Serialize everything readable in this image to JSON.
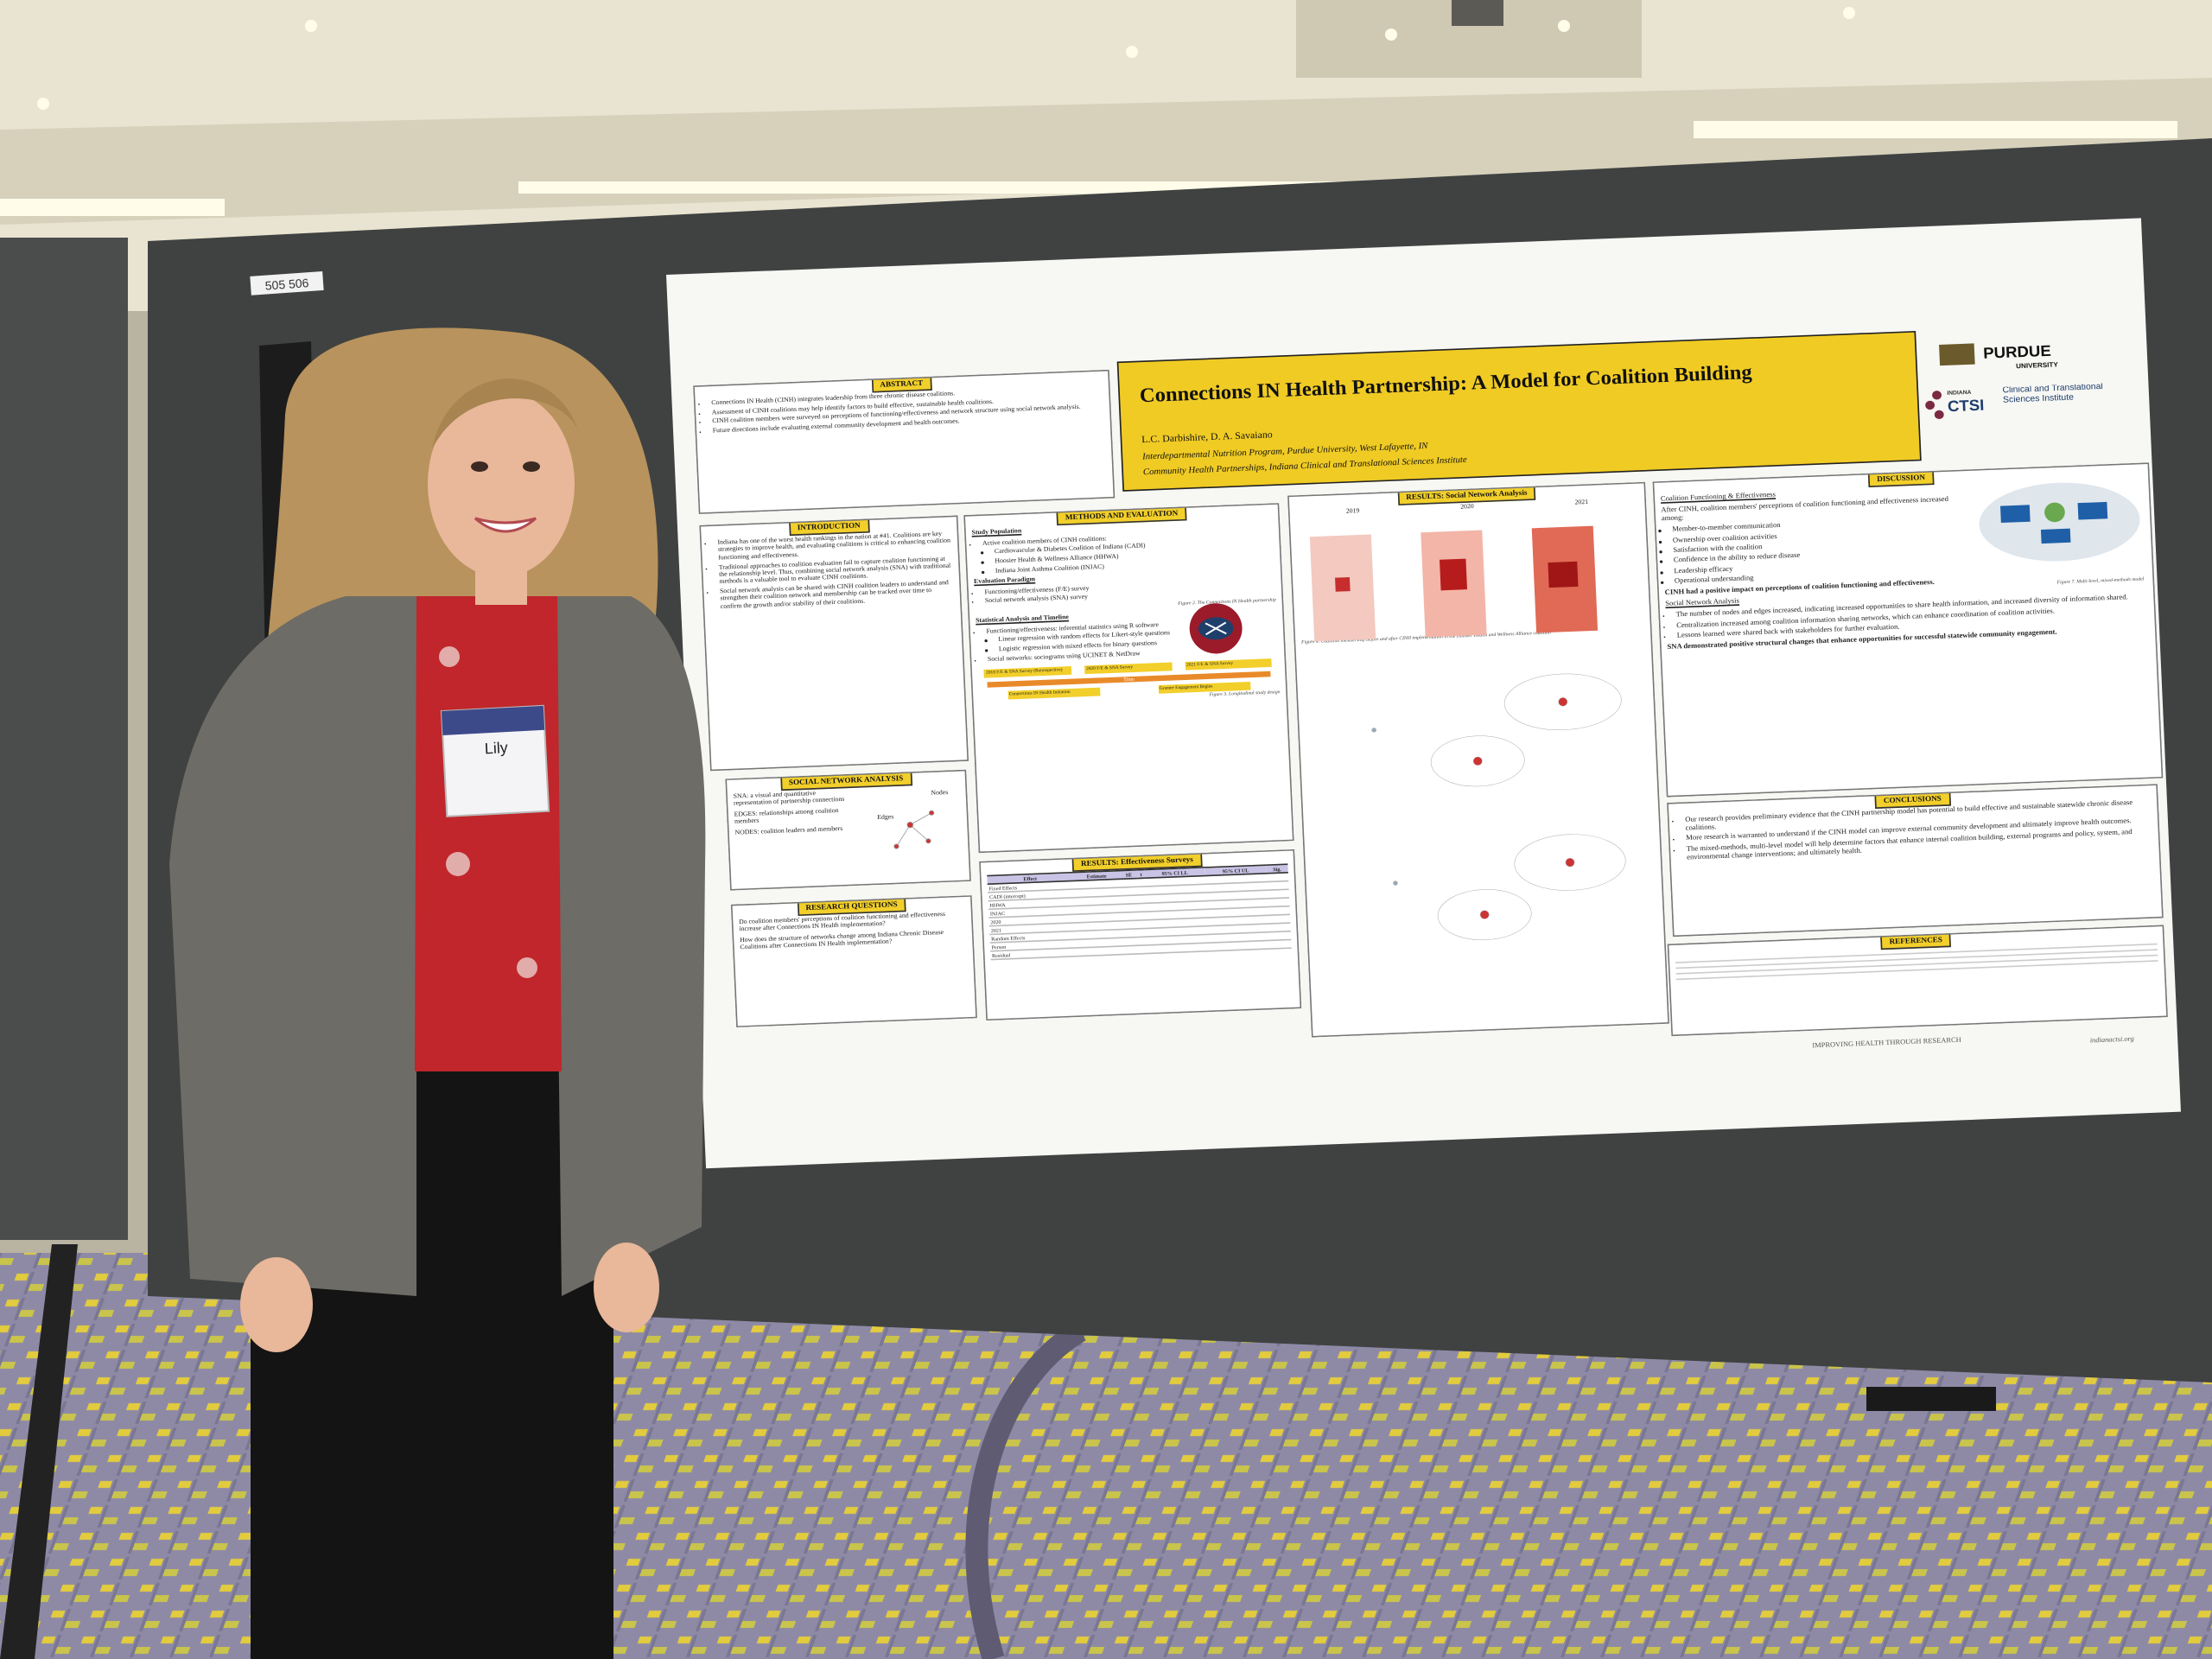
{
  "booth_number": "505 506",
  "badge": {
    "name": "Lily"
  },
  "poster": {
    "title": "Connections IN Health Partnership: A Model for Coalition Building",
    "authors": "L.C. Darbishire, D. A. Savaiano",
    "affiliations": [
      "Interdepartmental Nutrition Program, Purdue University, West Lafayette, IN",
      "Community Health Partnerships, Indiana Clinical and Translational Sciences Institute"
    ],
    "logos": {
      "purdue": "PURDUE",
      "purdue_sub": "UNIVERSITY",
      "ctsi_state": "INDIANA",
      "ctsi": "CTSI",
      "ctsi_name": "Clinical and Translational Sciences Institute"
    },
    "abstract": {
      "heading": "ABSTRACT",
      "items": [
        "Connections IN Health (CINH) integrates leadership from three chronic disease coalitions.",
        "Assessment of CINH coalitions may help identify factors to build effective, sustainable health coalitions.",
        "CINH coalition members were surveyed on perceptions of functioning/effectiveness and network structure using social network analysis.",
        "Future directions include evaluating external community development and health outcomes."
      ]
    },
    "introduction": {
      "heading": "INTRODUCTION",
      "items": [
        "Indiana has one of the worst health rankings in the nation at #41. Coalitions are key strategies to improve health, and evaluating coalitions is critical to enhancing coalition functioning and effectiveness.",
        "Traditional approaches to coalition evaluation fail to capture coalition functioning at the relationship level. Thus, combining social network analysis (SNA) with traditional methods is a valuable tool to evaluate CINH coalitions.",
        "Social network analysis can be shared with CINH coalition leaders to understand and strengthen their coalition network and membership can be tracked over time to confirm the growth and/or stability of their coalitions."
      ]
    },
    "social_network_analysis": {
      "heading": "SOCIAL NETWORK ANALYSIS",
      "items": [
        "SNA: a visual and quantitative representation of partnership connections",
        "EDGES: relationships among coalition members",
        "NODES: coalition leaders and members"
      ],
      "labels": [
        "Nodes",
        "Edges"
      ]
    },
    "research_questions": {
      "heading": "RESEARCH QUESTIONS",
      "items": [
        "Do coalition members' perceptions of coalition functioning and effectiveness increase after Connections IN Health implementation?",
        "How does the structure of networks change among Indiana Chronic Disease Coalitions after Connections IN Health implementation?"
      ]
    },
    "methods": {
      "heading": "METHODS AND EVALUATION",
      "study_population": "Study Population",
      "population_items": [
        "Active coalition members of CINH coalitions:",
        "Cardiovascular & Diabetes Coalition of Indiana (CADI)",
        "Hoosier Health & Wellness Alliance (HHWA)",
        "Indiana Joint Asthma Coalition (INJAC)"
      ],
      "paradigm": "Evaluation Paradigm",
      "paradigm_items": [
        "Functioning/effectiveness (F/E) survey",
        "Social network analysis (SNA) survey"
      ],
      "analysis": "Statistical Analysis and Timeline",
      "analysis_items": [
        "Functioning/effectiveness: inferential statistics using R software",
        "Linear regression with random effects for Likert-style questions",
        "Logistic regression with mixed effects for binary questions",
        "Social networks: sociograms using UCINET & NetDraw"
      ],
      "figure2": "Figure 2. The Connections IN Health partnership",
      "timeline": [
        "2018 F/E & SNA Survey (Retrospective)",
        "2020 F/E & SNA Survey",
        "2021 F/E & SNA Survey"
      ],
      "time": "Time",
      "milestones": [
        "Connections IN Health Initiation",
        "Grantee Engagement Begins"
      ],
      "figure3": "Figure 3. Longitudinal study design"
    },
    "results_effectiveness": {
      "heading": "RESULTS: Effectiveness Surveys",
      "columns": [
        "Effect",
        "Estimate",
        "SE",
        "t",
        "95% CI LL",
        "95% CI UL",
        "Sig."
      ],
      "rows": [
        "Fixed Effects",
        "CADI (intercept)",
        "HHWA",
        "INJAC",
        "2020",
        "2021",
        "Random Effects",
        "Person",
        "Residual"
      ]
    },
    "results_sna": {
      "heading": "RESULTS: Social Network Analysis",
      "years": [
        "2019",
        "2020",
        "2021"
      ],
      "figure4": "Figure 4. Coalition membership before and after CINH implementation in the Hoosier Health and Wellness Alliance coalition"
    },
    "discussion": {
      "heading": "DISCUSSION",
      "sub1": "Coalition Functioning & Effectiveness",
      "intro": "After CINH, coalition members' perceptions of coalition functioning and effectiveness increased among:",
      "increases": [
        "Member-to-member communication",
        "Ownership over coalition activities",
        "Satisfaction with the coalition",
        "Confidence in the ability to reduce disease",
        "Leadership efficacy",
        "Operational understanding"
      ],
      "summary1": "CINH had a positive impact on perceptions of coalition functioning and effectiveness.",
      "sub2": "Social Network Analysis",
      "items": [
        "The number of nodes and edges increased, indicating increased opportunities to share health information, and increased diversity of information shared.",
        "Centralization increased among coalition information sharing networks, which can enhance coordination of coalition activities.",
        "Lessons learned were shared back with stakeholders for further evaluation."
      ],
      "summary2": "SNA demonstrated positive structural changes that enhance opportunities for successful statewide community engagement.",
      "figure7": "Figure 7. Multi-level, mixed-methods model"
    },
    "conclusions": {
      "heading": "CONCLUSIONS",
      "items": [
        "Our research provides preliminary evidence that the CINH partnership model has potential to build effective and sustainable statewide chronic disease coalitions.",
        "More research is warranted to understand if the CINH model can improve external community development and ultimately improve health outcomes.",
        "The mixed-methods, multi-level model will help determine factors that enhance internal coalition building, external programs and policy, system, and environmental change interventions; and ultimately health."
      ]
    },
    "references": {
      "heading": "REFERENCES"
    },
    "footer": "IMPROVING HEALTH THROUGH RESEARCH",
    "url": "indianactsi.org"
  }
}
